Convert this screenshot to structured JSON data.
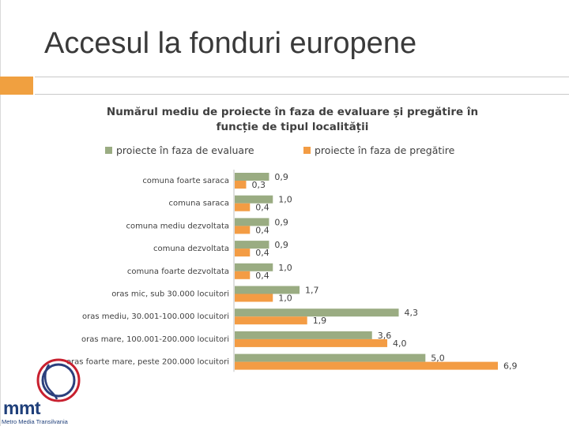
{
  "slide": {
    "title": "Accesul la fonduri europene"
  },
  "logo": {
    "name": "mmt",
    "sub": "Metro Media Transilvania"
  },
  "colors": {
    "evaluare": "#9aac82",
    "pregatire": "#f39c44",
    "accent": "#f0a040"
  },
  "chart_data": {
    "type": "bar",
    "orientation": "horizontal",
    "title_lines": [
      "Numărul mediu de proiecte în faza de evaluare și pregătire în",
      "funcție de tipul localității"
    ],
    "legend_position": "top",
    "categories": [
      "comuna foarte saraca",
      "comuna saraca",
      "comuna mediu dezvoltata",
      "comuna dezvoltata",
      "comuna foarte dezvoltata",
      "oras mic, sub 30.000 locuitori",
      "oras mediu, 30.001-100.000 locuitori",
      "oras mare, 100.001-200.000 locuitori",
      "oras foarte mare, peste 200.000 locuitori"
    ],
    "series": [
      {
        "name": "proiecte în faza de evaluare",
        "values": [
          0.9,
          1.0,
          0.9,
          0.9,
          1.0,
          1.7,
          4.3,
          3.6,
          5.0
        ],
        "labels": [
          "0,9",
          "1,0",
          "0,9",
          "0,9",
          "1,0",
          "1,7",
          "4,3",
          "3,6",
          "5,0"
        ]
      },
      {
        "name": "proiecte în faza de pregătire",
        "values": [
          0.3,
          0.4,
          0.4,
          0.4,
          0.4,
          1.0,
          1.9,
          4.0,
          6.9
        ],
        "labels": [
          "0,3",
          "0,4",
          "0,4",
          "0,4",
          "0,4",
          "1,0",
          "1,9",
          "4,0",
          "6,9"
        ]
      }
    ],
    "xlim": [
      0,
      7.5
    ],
    "grid": false
  }
}
